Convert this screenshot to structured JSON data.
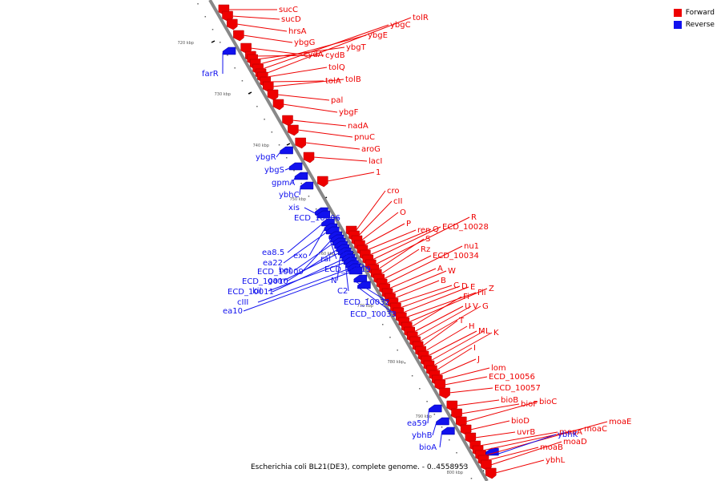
{
  "colors": {
    "forward": "#ee0000",
    "reverse": "#1111ee",
    "backbone": "#888888"
  },
  "legend": {
    "forward_label": "Forward",
    "reverse_label": "Reverse"
  },
  "caption": "Escherichia coli BL21(DE3), complete genome. - 0..4558953",
  "ticks": [
    "720 kbp",
    "730 kbp",
    "740 kbp",
    "750 kbp",
    "760 kbp",
    "770 kbp",
    "780 kbp",
    "790 kbp",
    "800 kbp"
  ],
  "forward_genes": [
    "sucC",
    "sucD",
    "hrsA",
    "ybgG",
    "cydA",
    "cydB",
    "ybgT",
    "ybgE",
    "ybgC",
    "tolR",
    "tolQ",
    "tolA",
    "tolB",
    "pal",
    "ybgF",
    "nadA",
    "pnuC",
    "aroG",
    "lacI",
    "1",
    "cro",
    "cII",
    "O",
    "P",
    "ren",
    "Q",
    "ECD_10028",
    "R",
    "S",
    "Rz",
    "ECD_10034",
    "nu1",
    "A",
    "W",
    "B",
    "C",
    "D",
    "E",
    "Fii",
    "Z",
    "Fi",
    "U",
    "V",
    "G",
    "T",
    "H",
    "M",
    "L",
    "K",
    "I",
    "J",
    "lom",
    "ECD_10056",
    "ECD_10057",
    "bioB",
    "bioF",
    "bioC",
    "bioD",
    "uvrB",
    "moaA",
    "moaC",
    "moaE",
    "moaB",
    "moaD",
    "ybhL"
  ],
  "reverse_genes": [
    "farR",
    "ybgR",
    "ybgS",
    "gpmA",
    "ybhC",
    "xis",
    "ECD_10006",
    "ea8.5",
    "exo",
    "ea22",
    "ral",
    "ECD_10009",
    "bet",
    "ECD_10019",
    "ECD_10010",
    "gam",
    "N",
    "ECD_10011",
    "kil",
    "C2",
    "cIII",
    "ECD_10032",
    "ea10",
    "ECD_10033",
    "ea59",
    "ybhB",
    "bioA",
    "ybhK"
  ]
}
